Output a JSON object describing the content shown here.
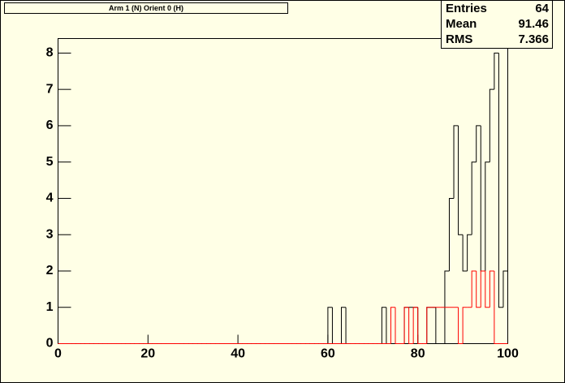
{
  "chart_data": {
    "type": "histogram",
    "title": "Arm 1 (N) Orient 0 (H)",
    "bins": [
      0,
      1,
      2,
      3,
      4,
      5,
      6,
      7,
      8,
      9,
      10,
      11,
      12,
      13,
      14,
      15,
      16,
      17,
      18,
      19,
      20,
      21,
      22,
      23,
      24,
      25,
      26,
      27,
      28,
      29,
      30,
      31,
      32,
      33,
      34,
      35,
      36,
      37,
      38,
      39,
      40,
      41,
      42,
      43,
      44,
      45,
      46,
      47,
      48,
      49,
      50,
      51,
      52,
      53,
      54,
      55,
      56,
      57,
      58,
      59,
      60,
      61,
      62,
      63,
      64,
      65,
      66,
      67,
      68,
      69,
      70,
      71,
      72,
      73,
      74,
      75,
      76,
      77,
      78,
      79,
      80,
      81,
      82,
      83,
      84,
      85,
      86,
      87,
      88,
      89,
      90,
      91,
      92,
      93,
      94,
      95,
      96,
      97,
      98,
      99,
      100
    ],
    "series": [
      {
        "color": "#000000",
        "values": [
          0,
          0,
          0,
          0,
          0,
          0,
          0,
          0,
          0,
          0,
          0,
          0,
          0,
          0,
          0,
          0,
          0,
          0,
          0,
          0,
          0,
          0,
          0,
          0,
          0,
          0,
          0,
          0,
          0,
          0,
          0,
          0,
          0,
          0,
          0,
          0,
          0,
          0,
          0,
          0,
          0,
          0,
          0,
          0,
          0,
          0,
          0,
          0,
          0,
          0,
          0,
          0,
          0,
          0,
          0,
          0,
          0,
          0,
          0,
          0,
          1,
          0,
          0,
          1,
          0,
          0,
          0,
          0,
          0,
          0,
          0,
          0,
          1,
          0,
          0,
          0,
          0,
          1,
          1,
          1,
          0,
          0,
          1,
          1,
          0,
          0,
          2,
          4,
          6,
          3,
          2,
          3,
          5,
          6,
          2,
          5,
          7,
          8,
          1,
          2
        ]
      },
      {
        "color": "#ff0000",
        "values": [
          0,
          0,
          0,
          0,
          0,
          0,
          0,
          0,
          0,
          0,
          0,
          0,
          0,
          0,
          0,
          0,
          0,
          0,
          0,
          0,
          0,
          0,
          0,
          0,
          0,
          0,
          0,
          0,
          0,
          0,
          0,
          0,
          0,
          0,
          0,
          0,
          0,
          0,
          0,
          0,
          0,
          0,
          0,
          0,
          0,
          0,
          0,
          0,
          0,
          0,
          0,
          0,
          0,
          0,
          0,
          0,
          0,
          0,
          0,
          0,
          0,
          0,
          0,
          0,
          0,
          0,
          0,
          0,
          0,
          0,
          0,
          0,
          0,
          0,
          1,
          0,
          0,
          1,
          0,
          1,
          0,
          0,
          1,
          1,
          1,
          1,
          1,
          1,
          1,
          0,
          1,
          1,
          2,
          1,
          2,
          1,
          2,
          0,
          0,
          0
        ]
      }
    ],
    "xlim": [
      0,
      100
    ],
    "xticks": [
      0,
      20,
      40,
      60,
      80,
      100
    ],
    "ylim": [
      0,
      8.4
    ],
    "yticks": [
      0,
      1,
      2,
      3,
      4,
      5,
      6,
      7,
      8
    ],
    "stats": [
      {
        "label": "Entries",
        "value": 64
      },
      {
        "label": "Mean",
        "value": 91.46
      },
      {
        "label": "RMS",
        "value": 7.366
      }
    ]
  }
}
